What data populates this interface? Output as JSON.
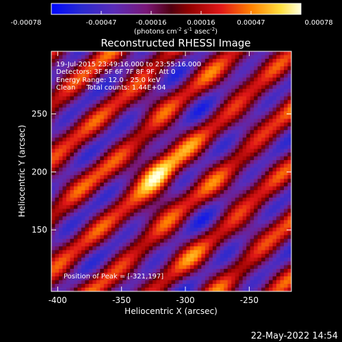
{
  "colorbar": {
    "ticks": [
      "-0.00078",
      "-0.00047",
      "-0.00016",
      "0.00016",
      "0.00047",
      "0.00078"
    ],
    "unit_base": "(photons cm",
    "unit_exp1": "-2",
    "unit_mid": " s",
    "unit_exp2": "-1",
    "unit_mid2": " asec",
    "unit_exp3": "-2",
    "unit_end": ")",
    "range": [
      -0.00078,
      0.00078
    ]
  },
  "chart_data": {
    "type": "heatmap",
    "title": "Reconstructed RHESSI Image",
    "xlabel": "Heliocentric X (arcsec)",
    "ylabel": "Heliocentric Y (arcsec)",
    "xlim": [
      -405,
      -217
    ],
    "ylim": [
      97,
      304
    ],
    "x_ticks": [
      -400,
      -350,
      -300,
      -250
    ],
    "y_ticks": [
      150,
      200,
      250
    ],
    "x_tick_labels": [
      "-400",
      "-350",
      "-300",
      "-250"
    ],
    "y_tick_labels": [
      "150",
      "200",
      "250"
    ],
    "grid": false,
    "peak": [
      -321,
      197
    ]
  },
  "annotations": {
    "line1": "19-Jul-2015 23:49:16.000 to 23:55:16.000",
    "line2": "Detectors: 3F 5F 6F 7F 8F 9F, Att 0",
    "line3": "Energy Range: 12.0 - 25.0 keV",
    "line4": "Clean     Total counts: 1.44E+04",
    "peak_text": "Position of Peak = [-321,197]"
  },
  "footer": {
    "date": "22-May-2022 14:54"
  },
  "colors": {
    "background": "#000000",
    "text": "#ffffff"
  }
}
